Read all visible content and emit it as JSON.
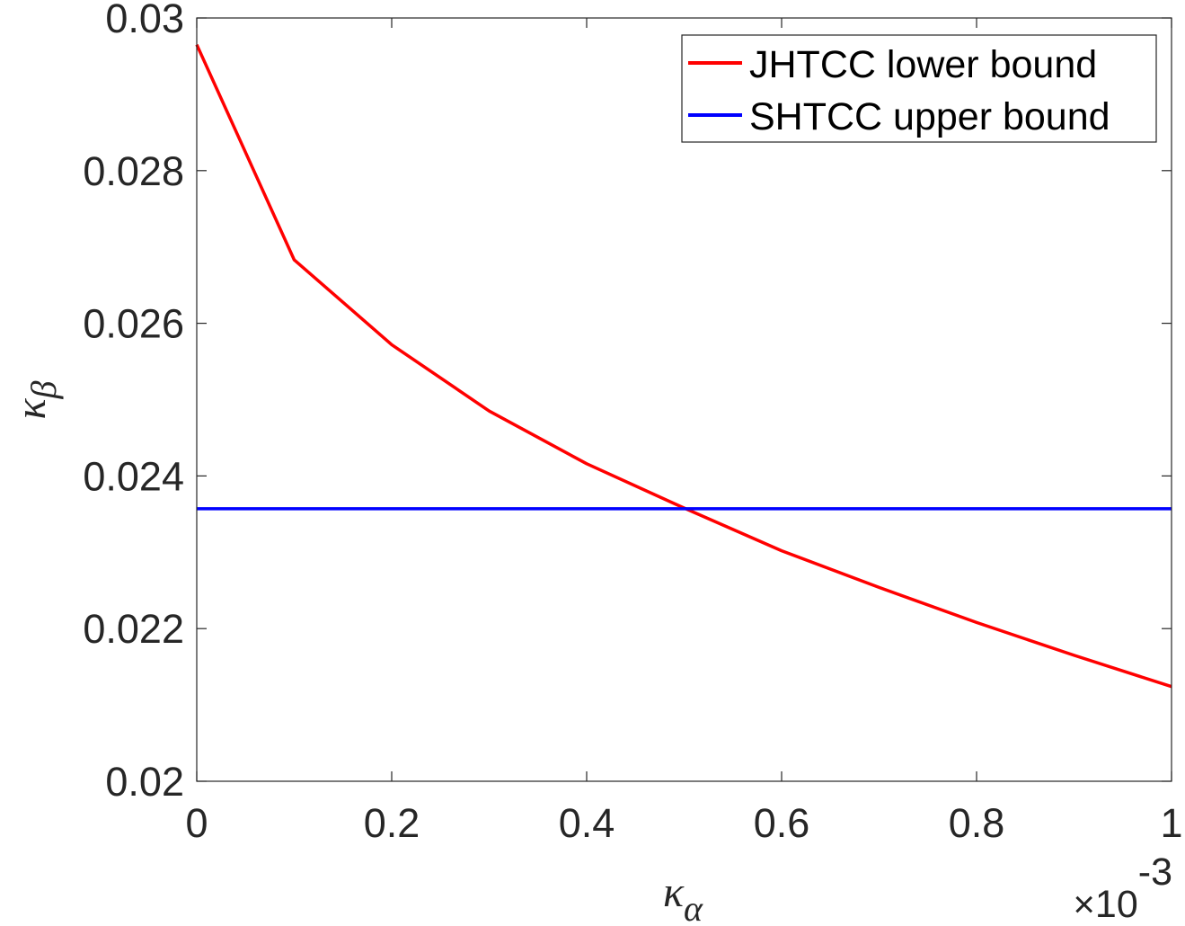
{
  "chart_data": {
    "type": "line",
    "xlabel": "κ",
    "xlabel_sub": "α",
    "ylabel": "κ",
    "ylabel_sub": "β",
    "x_multiplier": {
      "times": "×",
      "base": "10",
      "exponent": "-3"
    },
    "xlim": [
      0,
      1
    ],
    "ylim": [
      0.02,
      0.03
    ],
    "xticks": [
      0,
      0.2,
      0.4,
      0.6,
      0.8,
      1
    ],
    "xtick_labels": [
      "0",
      "0.2",
      "0.4",
      "0.6",
      "0.8",
      "1"
    ],
    "yticks": [
      0.02,
      0.022,
      0.024,
      0.026,
      0.028,
      0.03
    ],
    "ytick_labels": [
      "0.02",
      "0.022",
      "0.024",
      "0.026",
      "0.028",
      "0.03"
    ],
    "grid": false,
    "legend_position": "top-right",
    "series": [
      {
        "name": "JHTCC lower bound",
        "color": "#ff0000",
        "x": [
          0,
          0.1,
          0.2,
          0.3,
          0.4,
          0.5,
          0.6,
          0.7,
          0.8,
          0.9,
          1.0
        ],
        "y": [
          0.02965,
          0.02683,
          0.02572,
          0.02485,
          0.02416,
          0.02358,
          0.02302,
          0.02254,
          0.02208,
          0.02165,
          0.02124
        ]
      },
      {
        "name": "SHTCC upper bound",
        "color": "#0000ff",
        "x": [
          0,
          1.0
        ],
        "y": [
          0.02357,
          0.02357
        ]
      }
    ]
  }
}
